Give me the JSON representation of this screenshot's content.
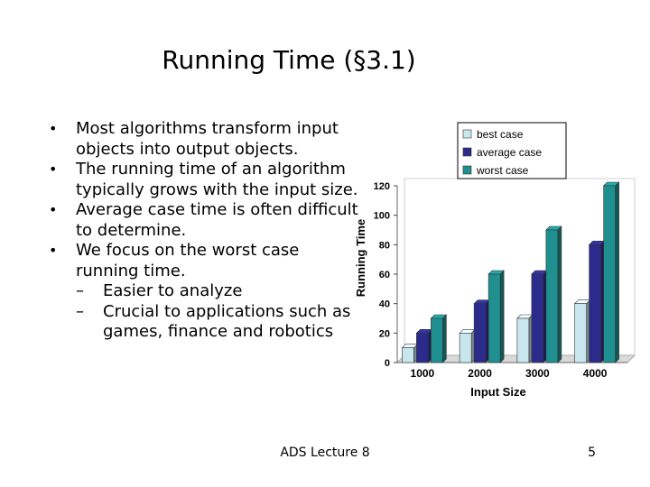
{
  "slide": {
    "title": "Running Time (§3.1)",
    "bullets": [
      "Most algorithms transform input objects into output objects.",
      "The running time of an algorithm typically grows with the input size.",
      "Average case time is often difficult to determine.",
      "We focus on the worst case running time."
    ],
    "sub_bullets": [
      "Easier to analyze",
      "Crucial to applications such as games, finance and robotics"
    ],
    "footer": "ADS Lecture 8",
    "page_number": "5"
  },
  "chart_data": {
    "type": "bar",
    "categories": [
      "1000",
      "2000",
      "3000",
      "4000"
    ],
    "series": [
      {
        "name": "best case",
        "values": [
          10,
          20,
          30,
          40
        ],
        "color": "#c8e6ee"
      },
      {
        "name": "average case",
        "values": [
          20,
          40,
          60,
          80
        ],
        "color": "#2b2b8c"
      },
      {
        "name": "worst case",
        "values": [
          30,
          60,
          90,
          120
        ],
        "color": "#1f8f8f"
      }
    ],
    "xlabel": "Input Size",
    "ylabel": "Running Time",
    "ylim": [
      0,
      120
    ],
    "yticks": [
      "0",
      "20",
      "40",
      "60",
      "80",
      "100",
      "120"
    ],
    "legend_position": "top-right",
    "grid": false
  }
}
